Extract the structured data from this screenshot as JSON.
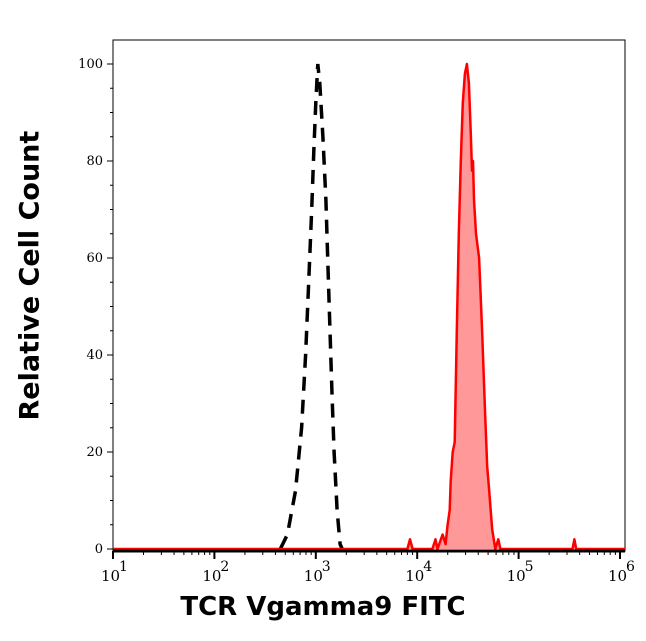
{
  "chart_data": {
    "type": "area",
    "title": "",
    "xlabel": "TCR Vgamma9 FITC",
    "ylabel": "Relative Cell Count",
    "x_scale": "log",
    "xlim": [
      10,
      1120000
    ],
    "ylim": [
      0,
      105
    ],
    "x_ticks": [
      {
        "base": "10",
        "exp": "1"
      },
      {
        "base": "10",
        "exp": "2"
      },
      {
        "base": "10",
        "exp": "3"
      },
      {
        "base": "10",
        "exp": "4"
      },
      {
        "base": "10",
        "exp": "5"
      },
      {
        "base": "10",
        "exp": "6"
      }
    ],
    "y_ticks": [
      "0",
      "20",
      "40",
      "60",
      "80",
      "100"
    ],
    "grid": false,
    "series": [
      {
        "style": "dashed-line",
        "color": "#000000",
        "points": [
          [
            447,
            0
          ],
          [
            525,
            3
          ],
          [
            631,
            12
          ],
          [
            724,
            25
          ],
          [
            794,
            40
          ],
          [
            851,
            55
          ],
          [
            912,
            70
          ],
          [
            955,
            82
          ],
          [
            1000,
            92
          ],
          [
            1047,
            100
          ],
          [
            1096,
            96
          ],
          [
            1175,
            85
          ],
          [
            1259,
            72
          ],
          [
            1318,
            58
          ],
          [
            1380,
            45
          ],
          [
            1445,
            32
          ],
          [
            1514,
            20
          ],
          [
            1622,
            8
          ],
          [
            1738,
            1
          ],
          [
            1820,
            0
          ]
        ]
      },
      {
        "style": "filled",
        "color": "#ff0000",
        "fill": "#ff9999",
        "points": [
          [
            10,
            0
          ],
          [
            8000,
            0
          ],
          [
            8500,
            2
          ],
          [
            9000,
            0
          ],
          [
            14125,
            0
          ],
          [
            15136,
            2
          ],
          [
            15849,
            0
          ],
          [
            17783,
            3
          ],
          [
            19055,
            1
          ],
          [
            19953,
            5
          ],
          [
            20893,
            8
          ],
          [
            21380,
            14
          ],
          [
            22387,
            20
          ],
          [
            23442,
            22
          ],
          [
            24547,
            45
          ],
          [
            25704,
            65
          ],
          [
            26915,
            80
          ],
          [
            28184,
            92
          ],
          [
            29512,
            98
          ],
          [
            30903,
            100
          ],
          [
            32359,
            96
          ],
          [
            33884,
            85
          ],
          [
            34674,
            78
          ],
          [
            35481,
            80
          ],
          [
            36308,
            72
          ],
          [
            38019,
            65
          ],
          [
            40738,
            60
          ],
          [
            43652,
            45
          ],
          [
            46774,
            28
          ],
          [
            48978,
            17
          ],
          [
            51286,
            12
          ],
          [
            54954,
            4
          ],
          [
            58884,
            0
          ],
          [
            63096,
            2
          ],
          [
            66069,
            0
          ],
          [
            340000,
            0
          ],
          [
            355000,
            2
          ],
          [
            370000,
            0
          ],
          [
            1120000,
            0
          ]
        ]
      }
    ]
  }
}
